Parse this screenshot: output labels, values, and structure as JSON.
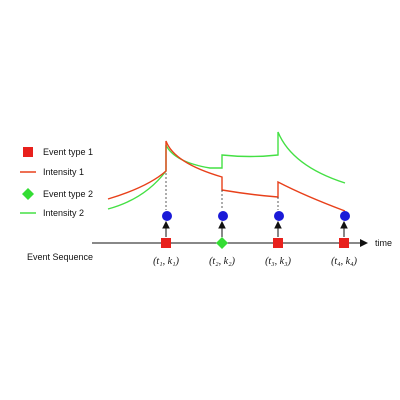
{
  "legend": {
    "event_type_1": "Event type 1",
    "intensity_1": "Intensity 1",
    "event_type_2": "Event type 2",
    "intensity_2": "Intensity 2"
  },
  "axis": {
    "time_label": "time",
    "sequence_label": "Event Sequence"
  },
  "events": [
    {
      "label": "(t₁, k₁)",
      "type": 1
    },
    {
      "label": "(t₂, k₂)",
      "type": 2
    },
    {
      "label": "(t₃, k₃)",
      "type": 1
    },
    {
      "label": "(t₄, k₄)",
      "type": 1
    }
  ],
  "colors": {
    "event_type_1": "#e8201c",
    "event_type_2": "#33dd33",
    "intensity_1": "#e8401a",
    "intensity_2": "#44e044",
    "event_marker": "#1a1ad8",
    "axis": "#111111"
  }
}
